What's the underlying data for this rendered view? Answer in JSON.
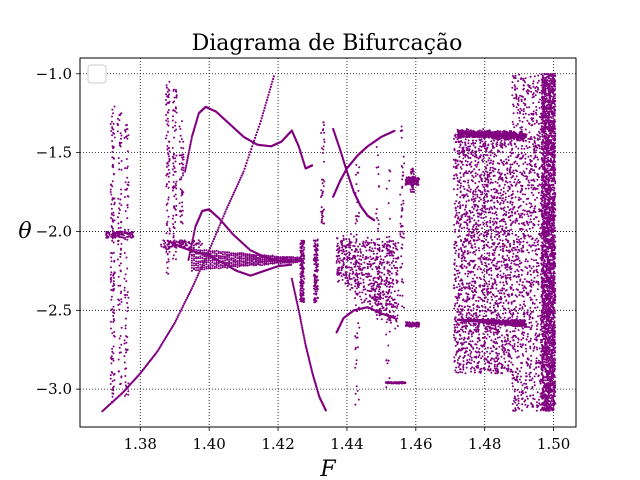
{
  "chart_data": {
    "type": "scatter",
    "title": "Diagrama de Bifurcação",
    "xlabel": "F",
    "ylabel": "θ",
    "xlim": [
      1.3625,
      1.5065
    ],
    "ylim": [
      -3.24,
      -0.9
    ],
    "x_ticks": [
      1.38,
      1.4,
      1.42,
      1.44,
      1.46,
      1.48,
      1.5
    ],
    "x_tick_labels": [
      "1.38",
      "1.40",
      "1.42",
      "1.44",
      "1.46",
      "1.48",
      "1.50"
    ],
    "y_ticks": [
      -1.0,
      -1.5,
      -2.0,
      -2.5,
      -3.0
    ],
    "y_tick_labels": [
      "−1.0",
      "−1.5",
      "−2.0",
      "−2.5",
      "−3.0"
    ],
    "grid": true,
    "grid_style": "dotted",
    "legend": "top-left",
    "legend_entries": [
      ""
    ],
    "colors": {
      "points": "#800080",
      "grid": "#000000",
      "axes": "#000000"
    },
    "series": [
      {
        "name": "",
        "description": "sampled bifurcation branches (θ values at each F)",
        "segments": [
          {
            "branch": "period-1 rising",
            "points": [
              [
                1.369,
                -3.14
              ],
              [
                1.375,
                -3.02
              ],
              [
                1.38,
                -2.9
              ],
              [
                1.385,
                -2.76
              ],
              [
                1.39,
                -2.58
              ],
              [
                1.395,
                -2.36
              ],
              [
                1.4,
                -2.12
              ],
              [
                1.405,
                -1.86
              ],
              [
                1.41,
                -1.62
              ],
              [
                1.415,
                -1.3
              ],
              [
                1.419,
                -1.0
              ]
            ]
          },
          {
            "branch": "upper arc A",
            "points": [
              [
                1.393,
                -1.62
              ],
              [
                1.395,
                -1.4
              ],
              [
                1.397,
                -1.25
              ],
              [
                1.399,
                -1.21
              ],
              [
                1.402,
                -1.24
              ],
              [
                1.406,
                -1.32
              ],
              [
                1.41,
                -1.4
              ],
              [
                1.414,
                -1.45
              ],
              [
                1.418,
                -1.46
              ],
              [
                1.421,
                -1.43
              ],
              [
                1.424,
                -1.36
              ],
              [
                1.426,
                -1.46
              ],
              [
                1.428,
                -1.6
              ],
              [
                1.43,
                -1.58
              ]
            ]
          },
          {
            "branch": "mid arc B",
            "points": [
              [
                1.394,
                -2.18
              ],
              [
                1.396,
                -1.97
              ],
              [
                1.398,
                -1.87
              ],
              [
                1.4,
                -1.86
              ],
              [
                1.403,
                -1.92
              ],
              [
                1.407,
                -2.02
              ],
              [
                1.412,
                -2.12
              ],
              [
                1.418,
                -2.18
              ],
              [
                1.424,
                -2.19
              ]
            ]
          },
          {
            "branch": "lower band",
            "points": [
              [
                1.388,
                -2.06
              ],
              [
                1.392,
                -2.1
              ],
              [
                1.396,
                -2.13
              ],
              [
                1.4,
                -2.15
              ],
              [
                1.404,
                -2.2
              ],
              [
                1.408,
                -2.25
              ],
              [
                1.412,
                -2.28
              ],
              [
                1.416,
                -2.25
              ],
              [
                1.42,
                -2.22
              ],
              [
                1.424,
                -2.21
              ]
            ]
          },
          {
            "branch": "falling tail",
            "points": [
              [
                1.424,
                -2.3
              ],
              [
                1.426,
                -2.5
              ],
              [
                1.428,
                -2.72
              ],
              [
                1.43,
                -2.9
              ],
              [
                1.432,
                -3.05
              ],
              [
                1.434,
                -3.14
              ]
            ]
          },
          {
            "branch": "fork upper",
            "points": [
              [
                1.436,
                -1.35
              ],
              [
                1.438,
                -1.48
              ],
              [
                1.44,
                -1.62
              ],
              [
                1.442,
                -1.75
              ],
              [
                1.444,
                -1.84
              ],
              [
                1.446,
                -1.9
              ],
              [
                1.448,
                -1.93
              ]
            ]
          },
          {
            "branch": "fork lower",
            "points": [
              [
                1.436,
                -1.78
              ],
              [
                1.438,
                -1.68
              ],
              [
                1.44,
                -1.6
              ],
              [
                1.443,
                -1.52
              ],
              [
                1.446,
                -1.46
              ],
              [
                1.45,
                -1.4
              ],
              [
                1.454,
                -1.36
              ]
            ]
          },
          {
            "branch": "chaotic band",
            "points": [
              [
                1.437,
                -2.64
              ],
              [
                1.439,
                -2.55
              ],
              [
                1.442,
                -2.5
              ],
              [
                1.446,
                -2.48
              ],
              [
                1.45,
                -2.52
              ],
              [
                1.454,
                -2.55
              ]
            ]
          },
          {
            "branch": "window 1.46",
            "points": [
              [
                1.458,
                -1.66
              ],
              [
                1.46,
                -1.72
              ],
              [
                1.458,
                -2.57
              ],
              [
                1.46,
                -2.6
              ]
            ]
          },
          {
            "branch": "chaos 1.47-1.50",
            "points": [
              [
                1.472,
                -1.36
              ],
              [
                1.478,
                -1.38
              ],
              [
                1.484,
                -1.42
              ],
              [
                1.49,
                -1.45
              ],
              [
                1.472,
                -2.56
              ],
              [
                1.478,
                -2.64
              ],
              [
                1.484,
                -2.68
              ],
              [
                1.49,
                -2.75
              ],
              [
                1.496,
                -1.0
              ],
              [
                1.499,
                -3.14
              ]
            ]
          }
        ]
      }
    ]
  }
}
